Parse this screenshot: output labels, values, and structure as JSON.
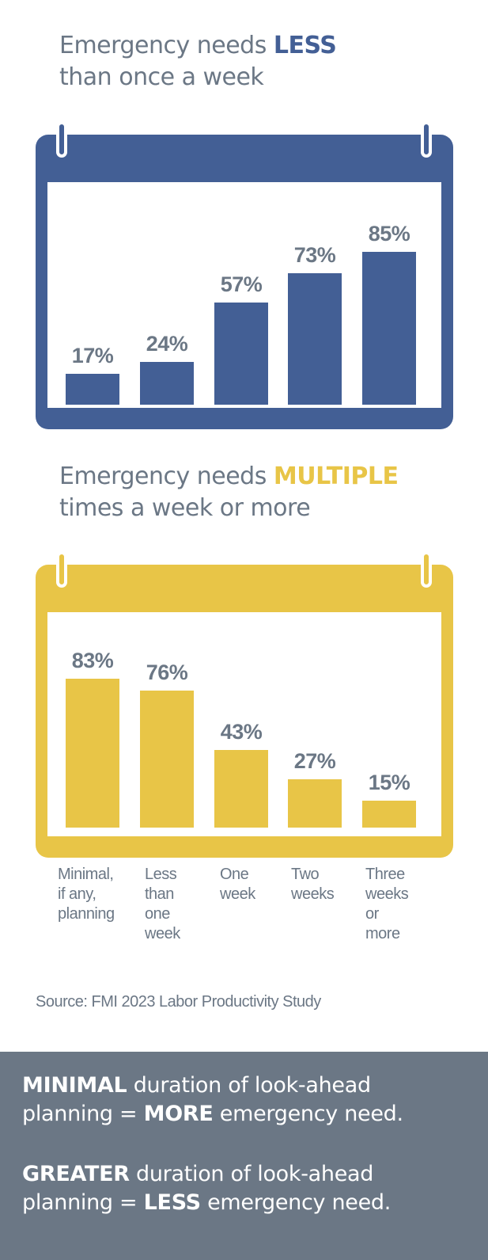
{
  "colors": {
    "blue": "#435f95",
    "yellow": "#e8c547",
    "gray": "#6b7785"
  },
  "heading1": {
    "prefix": "Emergency needs ",
    "emphasis": "LESS",
    "line2": "than once a week"
  },
  "heading2": {
    "prefix": "Emergency needs ",
    "emphasis": "MULTIPLE",
    "line2": "times a week or more"
  },
  "chart_data": [
    {
      "type": "bar",
      "title": "Emergency needs LESS than once a week",
      "categories": [
        "Minimal, if any, planning",
        "Less than one week",
        "One week",
        "Two weeks",
        "Three weeks or more"
      ],
      "values": [
        17,
        24,
        57,
        73,
        85
      ],
      "value_labels": [
        "17%",
        "24%",
        "57%",
        "73%",
        "85%"
      ],
      "unit": "%",
      "ylim": [
        0,
        100
      ],
      "color": "#435f95",
      "grid": false
    },
    {
      "type": "bar",
      "title": "Emergency needs MULTIPLE times a week or more",
      "categories": [
        "Minimal, if any, planning",
        "Less than one week",
        "One week",
        "Two weeks",
        "Three weeks or more"
      ],
      "values": [
        83,
        76,
        43,
        27,
        15
      ],
      "value_labels": [
        "83%",
        "76%",
        "43%",
        "27%",
        "15%"
      ],
      "unit": "%",
      "ylim": [
        0,
        100
      ],
      "color": "#e8c547",
      "grid": false
    }
  ],
  "category_lines": [
    [
      "Minimal,",
      "if any,",
      "planning"
    ],
    [
      "Less",
      "than",
      "one",
      "week"
    ],
    [
      "One",
      "week"
    ],
    [
      "Two",
      "weeks"
    ],
    [
      "Three",
      "weeks",
      "or",
      "more"
    ]
  ],
  "source": "Source: FMI 2023 Labor Productivity Study",
  "takeaway": {
    "line1": {
      "strong": "MINIMAL",
      "rest1": " duration of look-ahead",
      "rest2_pre": "planning = ",
      "strong2": "MORE",
      "rest2_post": " emergency need."
    },
    "line2": {
      "strong": "GREATER",
      "rest1": " duration of look-ahead",
      "rest2_pre": "planning = ",
      "strong2": "LESS",
      "rest2_post": " emergency need."
    }
  }
}
